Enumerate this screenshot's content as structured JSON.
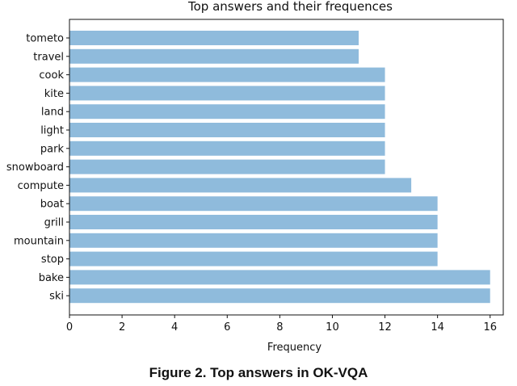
{
  "chart_data": {
    "type": "bar",
    "orientation": "horizontal",
    "title": "Top answers and their frequences",
    "xlabel": "Frequency",
    "ylabel": "",
    "xlim": [
      0,
      16.5
    ],
    "xticks": [
      0,
      2,
      4,
      6,
      8,
      10,
      12,
      14,
      16
    ],
    "categories": [
      "tometo",
      "travel",
      "cook",
      "kite",
      "land",
      "light",
      "park",
      "snowboard",
      "compute",
      "boat",
      "grill",
      "mountain",
      "stop",
      "bake",
      "ski"
    ],
    "values": [
      11,
      11,
      12,
      12,
      12,
      12,
      12,
      12,
      13,
      14,
      14,
      14,
      14,
      16,
      16
    ],
    "bar_color": "#8fbbdc",
    "grid": false
  },
  "caption": "Figure 2. Top answers in OK-VQA"
}
